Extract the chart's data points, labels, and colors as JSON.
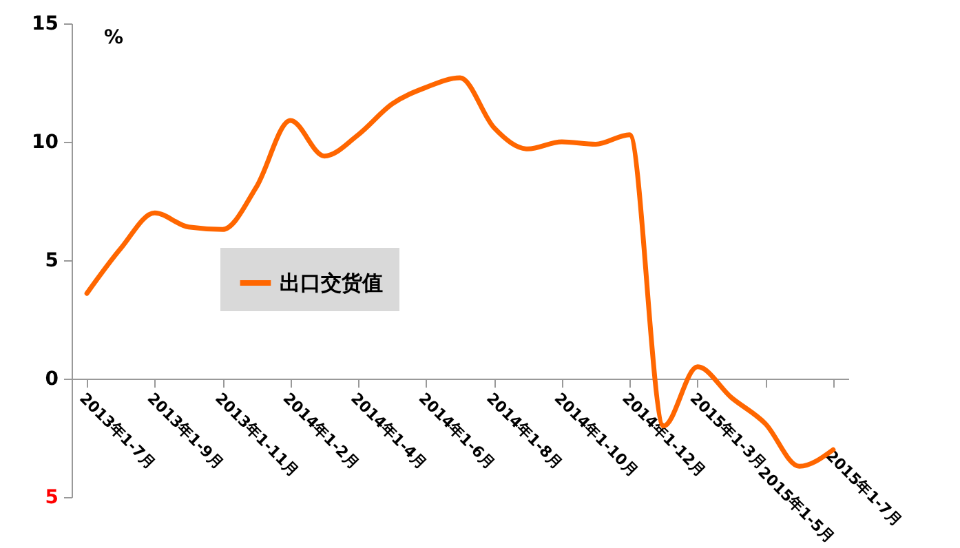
{
  "chart_data": {
    "type": "line",
    "ylabel": "%",
    "categories": [
      "2013年1-7月",
      null,
      "2013年1-9月",
      null,
      "2013年1-11月",
      null,
      "2014年1-2月",
      null,
      "2014年1-4月",
      null,
      "2014年1-6月",
      null,
      "2014年1-8月",
      null,
      "2014年1-10月",
      null,
      "2014年1-12月",
      null,
      "2015年1-3月",
      null,
      "2015年1-5月",
      null,
      "2015年1-7月"
    ],
    "series": [
      {
        "name": "出口交货值",
        "color": "#ff6600",
        "values": [
          3.6,
          5.5,
          7.0,
          6.4,
          6.3,
          8.1,
          10.9,
          9.4,
          10.3,
          11.6,
          12.3,
          12.7,
          10.6,
          9.7,
          10.0,
          9.9,
          10.3,
          -2.0,
          0.5,
          -0.8,
          -1.9,
          -3.7,
          -3.0
        ]
      }
    ],
    "ylim": [
      -5,
      15
    ],
    "yticks": [
      15,
      10,
      5,
      0,
      {
        "value": -5,
        "label": "5"
      }
    ],
    "legend": "left",
    "grid": false,
    "marker": "none",
    "line_style": "solid"
  }
}
